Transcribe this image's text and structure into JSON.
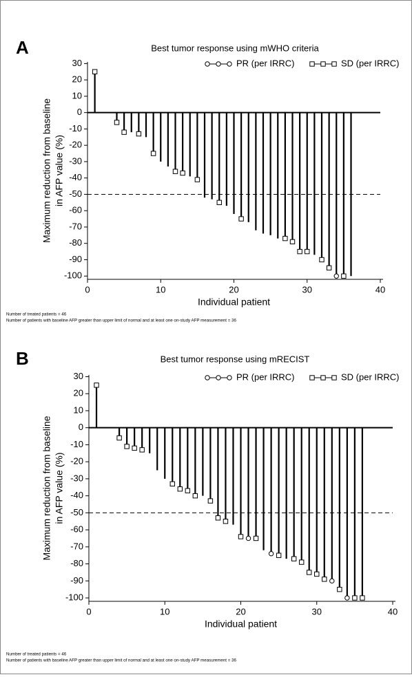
{
  "chart_data": [
    {
      "type": "bar",
      "panel": "A",
      "title": "Best tumor response using mWHO criteria",
      "xlabel": "Individual patient",
      "ylabel": [
        "Maximum reduction from baseline",
        "in AFP value (%)"
      ],
      "x": [
        1,
        4,
        5,
        6,
        7,
        8,
        9,
        10,
        11,
        12,
        13,
        14,
        15,
        16,
        17,
        18,
        19,
        20,
        21,
        22,
        23,
        24,
        25,
        26,
        27,
        28,
        29,
        30,
        31,
        32,
        33,
        34,
        35,
        36
      ],
      "values": [
        25,
        -6,
        -12,
        -12,
        -13,
        -15,
        -25,
        -30,
        -33,
        -36,
        -37,
        -39,
        -41,
        -52,
        -53,
        -55,
        -57,
        -62,
        -65,
        -67,
        -72,
        -74,
        -75,
        -77,
        -77,
        -79,
        -85,
        -85,
        -87,
        -90,
        -95,
        -100,
        -100,
        -100
      ],
      "series": [
        {
          "name": "PR (per IRRC)",
          "marker": "circle",
          "x": [
            34
          ]
        },
        {
          "name": "SD (per IRRC)",
          "marker": "square",
          "x": [
            1,
            4,
            5,
            7,
            9,
            12,
            13,
            15,
            18,
            21,
            27,
            28,
            29,
            30,
            32,
            33,
            35
          ]
        }
      ],
      "color": "#000000",
      "refline": -50,
      "xlim": [
        0,
        40
      ],
      "ylim": [
        -102,
        31
      ],
      "xticks": [
        0,
        10,
        20,
        30,
        40
      ],
      "yticks": [
        30,
        20,
        10,
        0,
        -10,
        -20,
        -30,
        -40,
        -50,
        -60,
        -70,
        -80,
        -90,
        -100
      ],
      "notes": [
        "Number of treated patients = 46",
        "Number of patients with baseline AFP greater than upper limit of normal and at least one on-study AFP measurement = 36"
      ]
    },
    {
      "type": "bar",
      "panel": "B",
      "title": "Best tumor response using mRECIST",
      "xlabel": "Individual patient",
      "ylabel": [
        "Maximum reduction from baseline",
        "in AFP value (%)"
      ],
      "x": [
        1,
        4,
        5,
        6,
        7,
        8,
        9,
        10,
        11,
        12,
        13,
        14,
        15,
        16,
        17,
        18,
        19,
        20,
        21,
        22,
        23,
        24,
        25,
        26,
        27,
        28,
        29,
        30,
        31,
        32,
        33,
        34,
        35,
        36
      ],
      "values": [
        25,
        -6,
        -11,
        -12,
        -13,
        -15,
        -25,
        -30,
        -33,
        -36,
        -37,
        -40,
        -40,
        -43,
        -53,
        -55,
        -57,
        -64,
        -65,
        -65,
        -72,
        -74,
        -75,
        -77,
        -77,
        -79,
        -85,
        -86,
        -89,
        -90,
        -95,
        -100,
        -100,
        -100
      ],
      "series": [
        {
          "name": "PR (per IRRC)",
          "marker": "circle",
          "x": [
            21,
            24,
            32,
            34
          ]
        },
        {
          "name": "SD (per IRRC)",
          "marker": "square",
          "x": [
            1,
            4,
            5,
            6,
            7,
            11,
            12,
            13,
            14,
            16,
            17,
            18,
            20,
            22,
            25,
            27,
            28,
            29,
            30,
            31,
            33,
            35,
            36
          ]
        }
      ],
      "color": "#000000",
      "refline": -50,
      "xlim": [
        0,
        40
      ],
      "ylim": [
        -102,
        31
      ],
      "xticks": [
        0,
        10,
        20,
        30,
        40
      ],
      "yticks": [
        30,
        20,
        10,
        0,
        -10,
        -20,
        -30,
        -40,
        -50,
        -60,
        -70,
        -80,
        -90,
        -100
      ],
      "notes": [
        "Number of treated patients = 46",
        "Number of patients with baseline AFP greater than upper limit of normal and at least one on-study AFP measurement = 36"
      ]
    }
  ]
}
